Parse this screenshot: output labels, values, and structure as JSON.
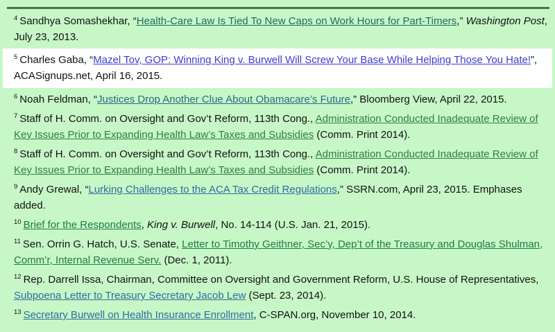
{
  "page": {
    "background": "#c7f7c7",
    "rule_color": "#4a7252",
    "highlight_background": "#ffffff",
    "text_color": "#111111"
  },
  "footnotes": [
    {
      "number": "4",
      "highlighted": false,
      "segments": [
        {
          "type": "text",
          "text": "Sandhya Somashekhar, “"
        },
        {
          "type": "link",
          "text": "Health-Care Law Is Tied To New Caps on Work Hours for Part-Timers",
          "color": "#1d6b60"
        },
        {
          "type": "text",
          "text": ",” "
        },
        {
          "type": "italic",
          "text": "Washington Post"
        },
        {
          "type": "text",
          "text": ", July 23, 2013."
        }
      ]
    },
    {
      "number": "5",
      "highlighted": true,
      "segments": [
        {
          "type": "text",
          "text": "Charles Gaba, “"
        },
        {
          "type": "link",
          "text": "Mazel Tov, GOP: Winning King v. Burwell Will Screw Your Base While Helping Those You Hate!",
          "color": "#3c3ccc"
        },
        {
          "type": "text",
          "text": "”, ACASignups.net, April 16, 2015."
        }
      ]
    },
    {
      "number": "6",
      "highlighted": false,
      "segments": [
        {
          "type": "text",
          "text": "Noah Feldman, “"
        },
        {
          "type": "link",
          "text": "Justices Drop Another Clue About Obamacare’s Future",
          "color": "#266d82"
        },
        {
          "type": "text",
          "text": ",” Bloomberg View, April 22, 2015."
        }
      ]
    },
    {
      "number": "7",
      "highlighted": false,
      "segments": [
        {
          "type": "text",
          "text": "Staff of H. Comm. on Oversight and Gov’t Reform, 113th Cong., "
        },
        {
          "type": "link",
          "text": "Administration Conducted Inadequate Review of Key Issues Prior to Expanding Health Law’s Taxes and Subsidies",
          "color": "#2f7d46"
        },
        {
          "type": "text",
          "text": " (Comm. Print 2014)."
        }
      ]
    },
    {
      "number": "8",
      "highlighted": false,
      "segments": [
        {
          "type": "text",
          "text": "Staff of H. Comm. on Oversight and Gov’t Reform, 113th Cong., "
        },
        {
          "type": "link",
          "text": "Administration Conducted Inadequate Review of Key Issues Prior to Expanding Health Law’s Taxes and Subsidies",
          "color": "#2f7d46"
        },
        {
          "type": "text",
          "text": " (Comm. Print 2014)."
        }
      ]
    },
    {
      "number": "9",
      "highlighted": false,
      "segments": [
        {
          "type": "text",
          "text": "Andy Grewal, “"
        },
        {
          "type": "link",
          "text": "Lurking Challenges to the ACA Tax Credit Regulations",
          "color": "#2d6da1"
        },
        {
          "type": "text",
          "text": ",” SSRN.com, April 23, 2015. Emphases added."
        }
      ]
    },
    {
      "number": "10",
      "highlighted": false,
      "segments": [
        {
          "type": "link",
          "text": "Brief for the Respondents",
          "color": "#1f7a48"
        },
        {
          "type": "text",
          "text": ", "
        },
        {
          "type": "italic",
          "text": "King v. Burwell"
        },
        {
          "type": "text",
          "text": ", No. 14-114 (U.S. Jan. 21, 2015)."
        }
      ]
    },
    {
      "number": "11",
      "highlighted": false,
      "segments": [
        {
          "type": "text",
          "text": "Sen. Orrin G. Hatch, U.S. Senate, "
        },
        {
          "type": "link",
          "text": "Letter to Timothy Geithner, Sec’y, Dep’t of the Treasury and Douglas Shulman, Comm’r, Internal Revenue Serv.",
          "color": "#1f7a48"
        },
        {
          "type": "text",
          "text": " (Dec. 1, 2011)."
        }
      ]
    },
    {
      "number": "12",
      "highlighted": false,
      "segments": [
        {
          "type": "text",
          "text": "Rep. Darrell Issa, Chairman, Committee on Oversight and Government Reform, U.S. House of Representatives, "
        },
        {
          "type": "link",
          "text": "Subpoena Letter to Treasury Secretary Jacob Lew",
          "color": "#2d6da1"
        },
        {
          "type": "text",
          "text": " (Sept. 23, 2014)."
        }
      ]
    },
    {
      "number": "13",
      "highlighted": false,
      "segments": [
        {
          "type": "link",
          "text": "Secretary Burwell on Health Insurance Enrollment",
          "color": "#2d6da1"
        },
        {
          "type": "text",
          "text": ", C-SPAN.org, November 10, 2014."
        }
      ]
    }
  ]
}
